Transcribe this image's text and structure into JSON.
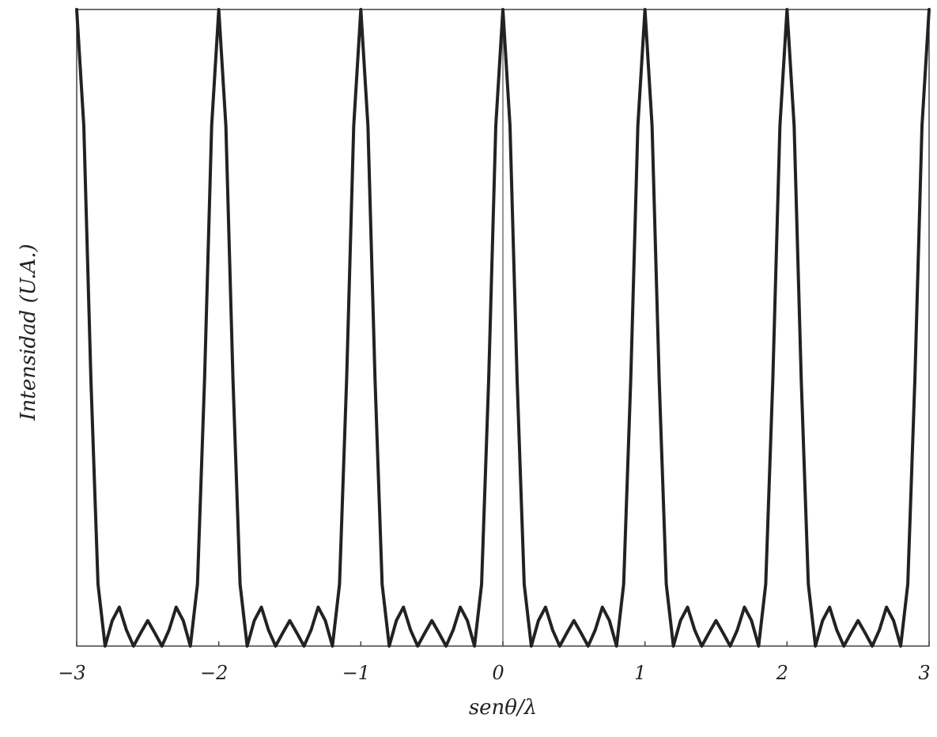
{
  "chart_data": {
    "type": "line",
    "x_label": "senθ/λ",
    "y_label": "Intensidad (U.A.)",
    "color": "#222222",
    "xlim": [
      -3,
      3
    ],
    "ylim": [
      0,
      1
    ],
    "xticks": [
      {
        "value": -3,
        "label": "−3"
      },
      {
        "value": -2,
        "label": "−2"
      },
      {
        "value": -1,
        "label": "−1"
      },
      0,
      1,
      2,
      3
    ],
    "zeroline": true,
    "x": [
      -3,
      -2.95,
      -2.9,
      -2.85,
      -2.8,
      -2.75,
      -2.7,
      -2.65,
      -2.6,
      -2.55,
      -2.5,
      -2.45,
      -2.4,
      -2.35,
      -2.3,
      -2.25,
      -2.2,
      -2.15,
      -2.1,
      -2.05,
      -2,
      -1.95,
      -1.9,
      -1.85,
      -1.8,
      -1.75,
      -1.7,
      -1.65,
      -1.6,
      -1.55,
      -1.5,
      -1.45,
      -1.4,
      -1.35,
      -1.3,
      -1.25,
      -1.2,
      -1.15,
      -1.1,
      -1.05,
      -1,
      -0.95,
      -0.9,
      -0.85,
      -0.8,
      -0.75,
      -0.7,
      -0.65,
      -0.6,
      -0.55,
      -0.5,
      -0.45,
      -0.4,
      -0.35,
      -0.3,
      -0.25,
      -0.2,
      -0.15,
      -0.1,
      -0.05,
      0,
      0.05,
      0.1,
      0.15,
      0.2,
      0.25,
      0.3,
      0.35,
      0.4,
      0.45,
      0.5,
      0.55,
      0.6,
      0.65,
      0.7,
      0.75,
      0.8,
      0.85,
      0.9,
      0.95,
      1,
      1.05,
      1.1,
      1.15,
      1.2,
      1.25,
      1.3,
      1.35,
      1.4,
      1.45,
      1.5,
      1.55,
      1.6,
      1.65,
      1.7,
      1.75,
      1.8,
      1.85,
      1.9,
      1.95,
      2,
      2.05,
      2.1,
      2.15,
      2.2,
      2.25,
      2.3,
      2.35,
      2.4,
      2.45,
      2.5,
      2.55,
      2.6,
      2.65,
      2.7,
      2.75,
      2.8,
      2.85,
      2.9,
      2.95,
      3
    ],
    "values": [
      1,
      0.8173,
      0.4189,
      0.097,
      0,
      0.04,
      0.0611,
      0.0252,
      0,
      0.0205,
      0.04,
      0.0205,
      0,
      0.0252,
      0.0611,
      0.04,
      0,
      0.097,
      0.4189,
      0.8173,
      1,
      0.8173,
      0.4189,
      0.097,
      0,
      0.04,
      0.0611,
      0.0252,
      0,
      0.0205,
      0.04,
      0.0205,
      0,
      0.0252,
      0.0611,
      0.04,
      0,
      0.097,
      0.4189,
      0.8173,
      1,
      0.8173,
      0.4189,
      0.097,
      0,
      0.04,
      0.0611,
      0.0252,
      0,
      0.0205,
      0.04,
      0.0205,
      0,
      0.0252,
      0.0611,
      0.04,
      0,
      0.097,
      0.4189,
      0.8173,
      1,
      0.8173,
      0.4189,
      0.097,
      0,
      0.04,
      0.0611,
      0.0252,
      0,
      0.0205,
      0.04,
      0.0205,
      0,
      0.0252,
      0.0611,
      0.04,
      0,
      0.097,
      0.4189,
      0.8173,
      1,
      0.8173,
      0.4189,
      0.097,
      0,
      0.04,
      0.0611,
      0.0252,
      0,
      0.0205,
      0.04,
      0.0205,
      0,
      0.0252,
      0.0611,
      0.04,
      0,
      0.097,
      0.4189,
      0.8173,
      1,
      0.8173,
      0.4189,
      0.097,
      0,
      0.04,
      0.0611,
      0.0252,
      0,
      0.0205,
      0.04,
      0.0205,
      0,
      0.0252,
      0.0611,
      0.04,
      0,
      0.097,
      0.4189,
      0.8173,
      1
    ]
  }
}
